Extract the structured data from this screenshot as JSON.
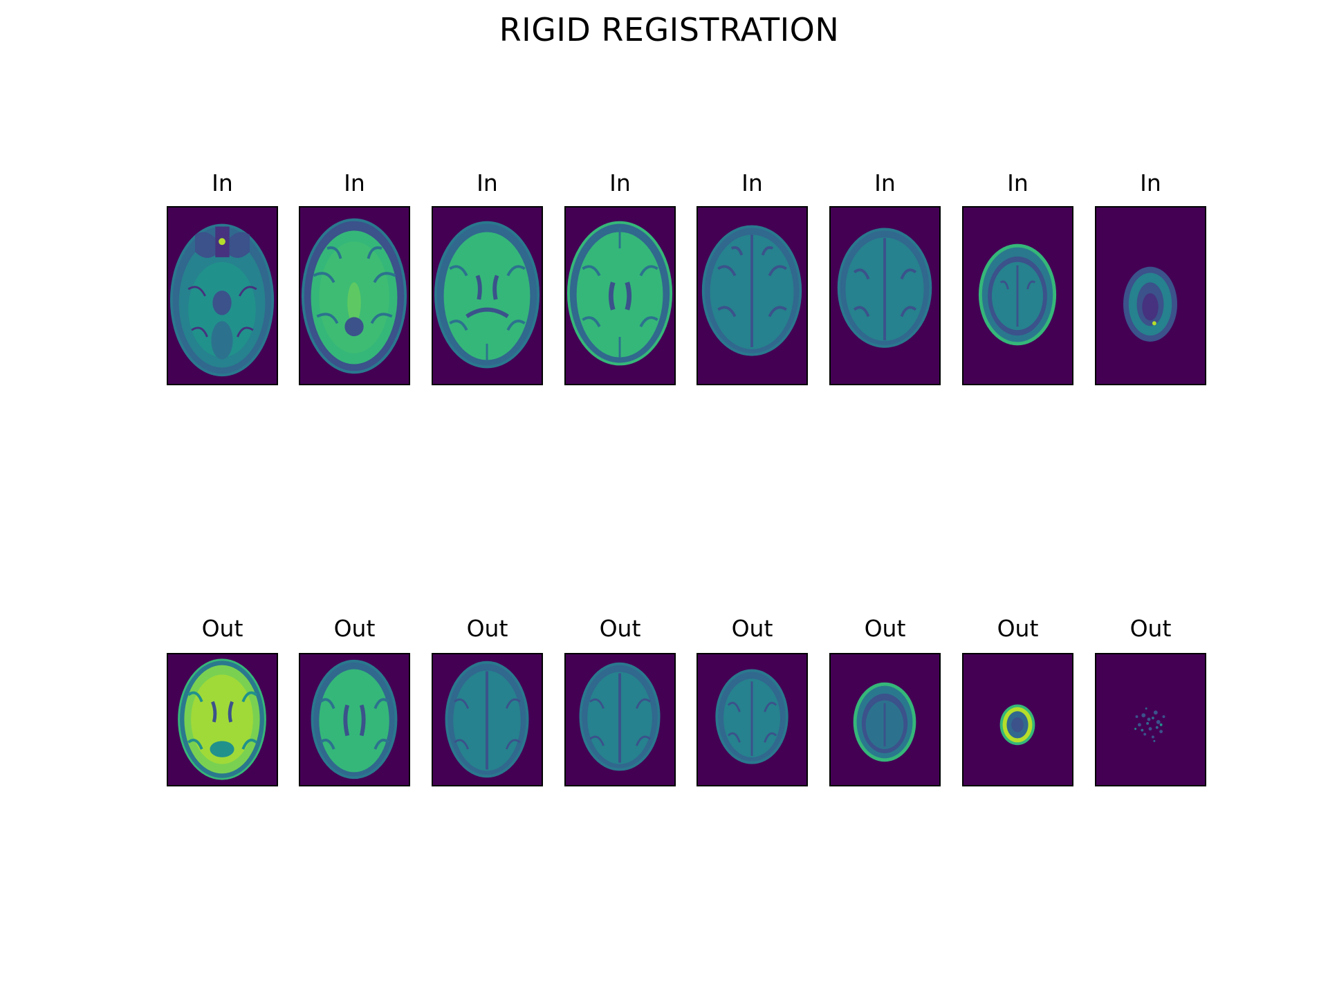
{
  "figure": {
    "title": "RIGID REGISTRATION"
  },
  "colors": {
    "background": "#440154",
    "dark": "#3b528b",
    "mid": "#21918c",
    "bright": "#35b779",
    "highlight": "#b5de2b"
  },
  "rows": [
    {
      "name": "input",
      "panels": [
        {
          "title": "In",
          "slice": "skull-base axial MRI slice with orbits"
        },
        {
          "title": "In",
          "slice": "axial MRI slice through midbrain"
        },
        {
          "title": "In",
          "slice": "axial MRI slice through lateral ventricles"
        },
        {
          "title": "In",
          "slice": "axial MRI slice through upper ventricles"
        },
        {
          "title": "In",
          "slice": "axial MRI slice above ventricles"
        },
        {
          "title": "In",
          "slice": "high axial MRI slice"
        },
        {
          "title": "In",
          "slice": "near-vertex axial MRI slice"
        },
        {
          "title": "In",
          "slice": "vertex axial MRI slice"
        }
      ]
    },
    {
      "name": "output",
      "panels": [
        {
          "title": "Out",
          "slice": "registered axial slice through basal ganglia"
        },
        {
          "title": "Out",
          "slice": "registered axial slice through lateral ventricles"
        },
        {
          "title": "Out",
          "slice": "registered axial slice above ventricles"
        },
        {
          "title": "Out",
          "slice": "registered high axial slice"
        },
        {
          "title": "Out",
          "slice": "registered higher axial slice"
        },
        {
          "title": "Out",
          "slice": "registered near-vertex slice"
        },
        {
          "title": "Out",
          "slice": "registered vertex ring slice"
        },
        {
          "title": "Out",
          "slice": "registered noise-only slice"
        }
      ]
    }
  ]
}
